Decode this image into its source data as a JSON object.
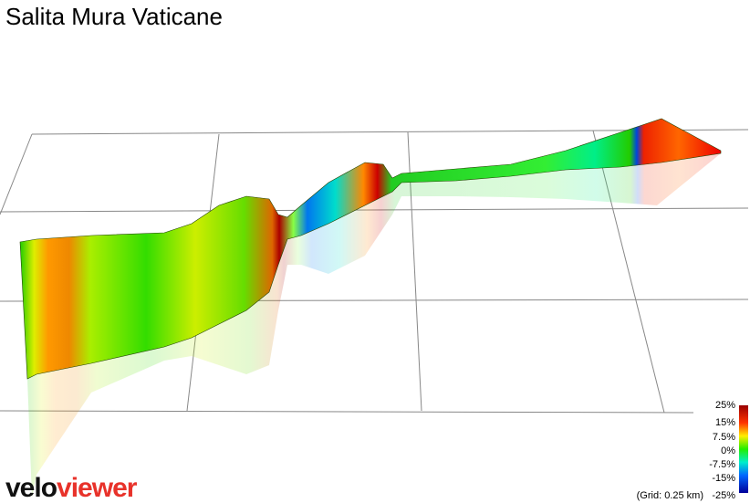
{
  "title": "Salita Mura Vaticane",
  "legend": {
    "labels": [
      "25%",
      "15%",
      "7.5%",
      "0%",
      "-7.5%",
      "-15%",
      "-25%"
    ],
    "grid_note": "(Grid: 0.25 km)"
  },
  "logo": {
    "first": "velo",
    "second": "viewer"
  }
}
